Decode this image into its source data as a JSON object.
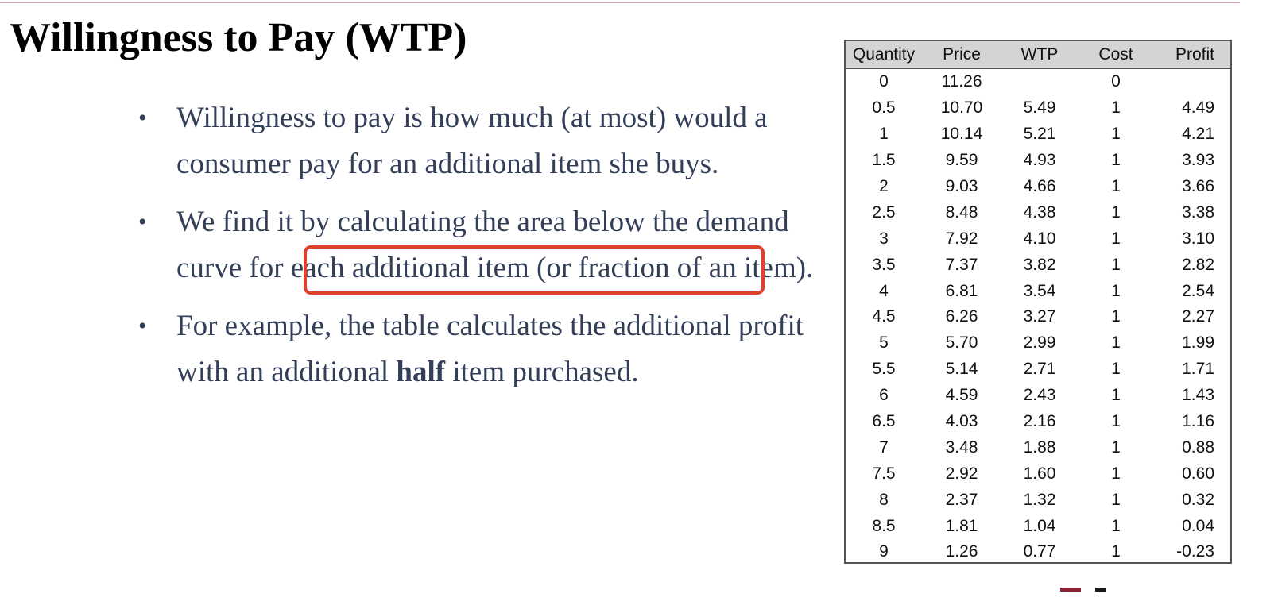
{
  "slide": {
    "title": "Willingness to Pay (WTP)",
    "bullets": [
      {
        "text": "Willingness to pay is how much (at most) would a consumer pay for an additional item she buys."
      },
      {
        "text": "We find it by calculating the area below the demand curve for each additional item (or fraction of an item)."
      },
      {
        "text_before": "For example, the table calculates the additional profit with an additional ",
        "text_bold": "half",
        "text_after": " item purchased."
      }
    ],
    "bullet_glyph": "•",
    "highlight_color": "#e0402c"
  },
  "table": {
    "headers": [
      "Quantity",
      "Price",
      "WTP",
      "Cost",
      "Profit"
    ],
    "rows": [
      [
        "0",
        "11.26",
        "",
        "0",
        ""
      ],
      [
        "0.5",
        "10.70",
        "5.49",
        "1",
        "4.49"
      ],
      [
        "1",
        "10.14",
        "5.21",
        "1",
        "4.21"
      ],
      [
        "1.5",
        "9.59",
        "4.93",
        "1",
        "3.93"
      ],
      [
        "2",
        "9.03",
        "4.66",
        "1",
        "3.66"
      ],
      [
        "2.5",
        "8.48",
        "4.38",
        "1",
        "3.38"
      ],
      [
        "3",
        "7.92",
        "4.10",
        "1",
        "3.10"
      ],
      [
        "3.5",
        "7.37",
        "3.82",
        "1",
        "2.82"
      ],
      [
        "4",
        "6.81",
        "3.54",
        "1",
        "2.54"
      ],
      [
        "4.5",
        "6.26",
        "3.27",
        "1",
        "2.27"
      ],
      [
        "5",
        "5.70",
        "2.99",
        "1",
        "1.99"
      ],
      [
        "5.5",
        "5.14",
        "2.71",
        "1",
        "1.71"
      ],
      [
        "6",
        "4.59",
        "2.43",
        "1",
        "1.43"
      ],
      [
        "6.5",
        "4.03",
        "2.16",
        "1",
        "1.16"
      ],
      [
        "7",
        "3.48",
        "1.88",
        "1",
        "0.88"
      ],
      [
        "7.5",
        "2.92",
        "1.60",
        "1",
        "0.60"
      ],
      [
        "8",
        "2.37",
        "1.32",
        "1",
        "0.32"
      ],
      [
        "8.5",
        "1.81",
        "1.04",
        "1",
        "0.04"
      ],
      [
        "9",
        "1.26",
        "0.77",
        "1",
        "-0.23"
      ]
    ]
  }
}
